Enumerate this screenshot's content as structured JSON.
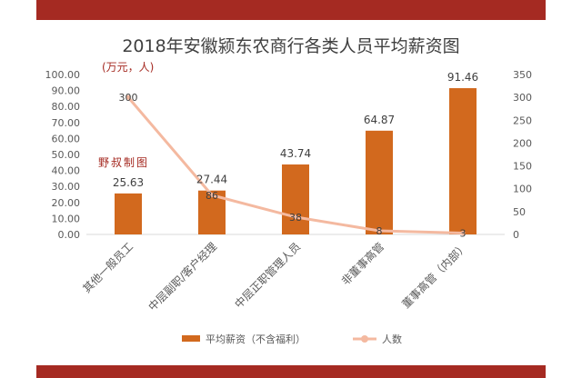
{
  "chart_data": {
    "type": "bar",
    "title": "2018年安徽颍东农商行各类人员平均薪资图",
    "unit_label": "(万元，人)",
    "watermark": "野叔制图",
    "categories": [
      "其他一般员工",
      "中层副职/客户经理",
      "中层正职管理人员",
      "非董事高管",
      "董事高管（内部）"
    ],
    "series": [
      {
        "name": "平均薪资（不含福利）",
        "type": "bar",
        "axis": "left",
        "color": "#d2691e",
        "values": [
          25.63,
          27.44,
          43.74,
          64.87,
          91.46
        ],
        "labels": [
          "25.63",
          "27.44",
          "43.74",
          "64.87",
          "91.46"
        ]
      },
      {
        "name": "人数",
        "type": "line",
        "axis": "right",
        "color": "#f4b9a0",
        "values": [
          300,
          86,
          38,
          8,
          3
        ],
        "labels": [
          "300",
          "86",
          "38",
          "8",
          "3"
        ]
      }
    ],
    "y_left": {
      "min": 0,
      "max": 100,
      "ticks": [
        "0.00",
        "10.00",
        "20.00",
        "30.00",
        "40.00",
        "50.00",
        "60.00",
        "70.00",
        "80.00",
        "90.00",
        "100.00"
      ]
    },
    "y_right": {
      "min": 0,
      "max": 350,
      "ticks": [
        "0",
        "50",
        "100",
        "150",
        "200",
        "250",
        "300",
        "350"
      ]
    },
    "grid": false,
    "legend_position": "bottom"
  },
  "colors": {
    "band": "#a52a22",
    "bar": "#d2691e",
    "line": "#f4b9a0",
    "text": "#595959",
    "watermark": "#a52a22"
  }
}
